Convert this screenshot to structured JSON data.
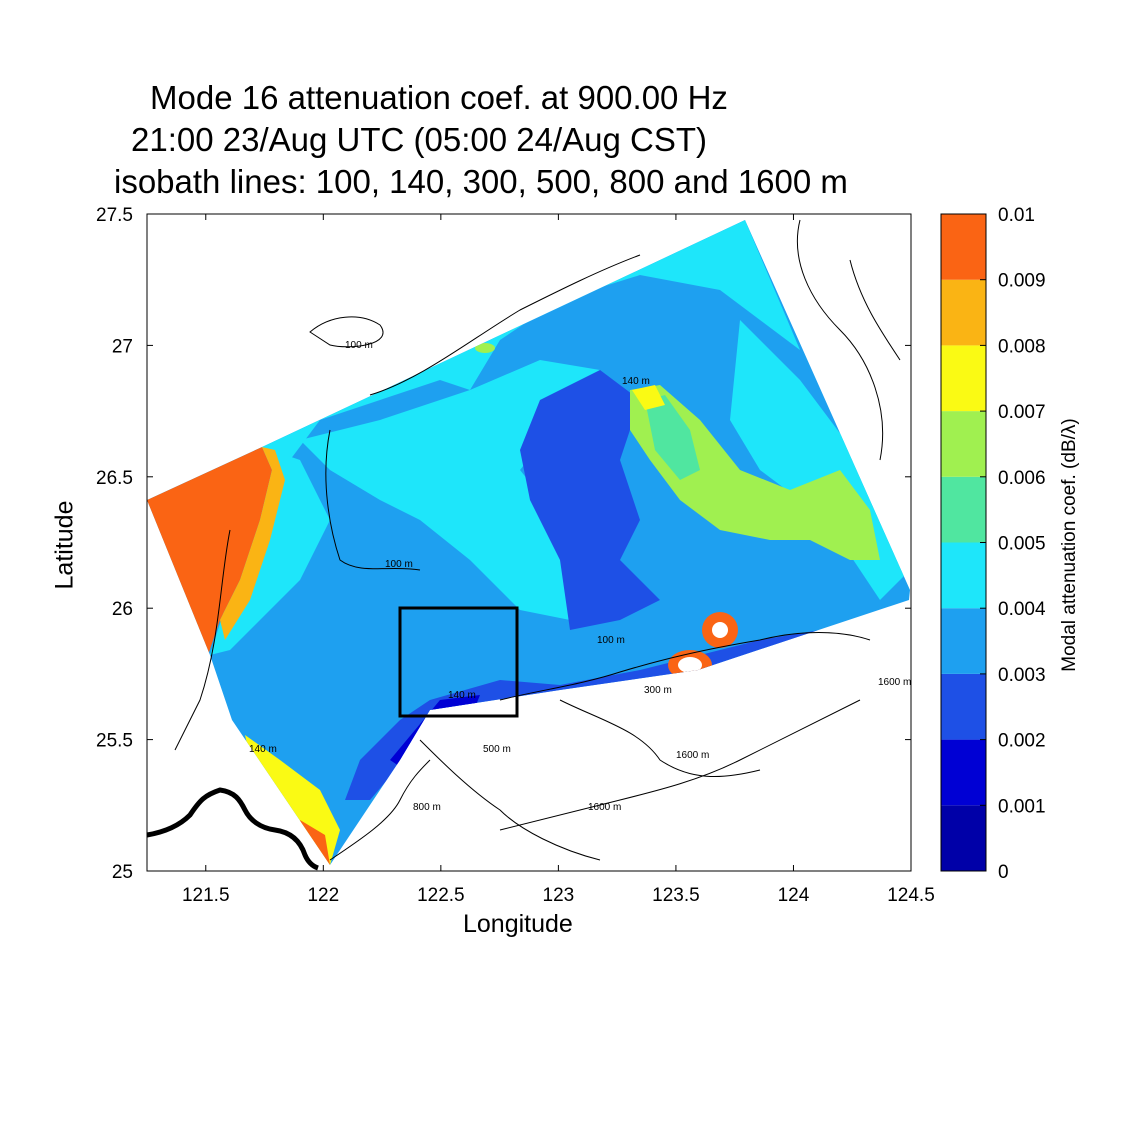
{
  "title": {
    "line1": "Mode 16 attenuation coef. at 900.00 Hz",
    "line2": "21:00 23/Aug UTC (05:00 24/Aug CST)",
    "line3": "isobath lines: 100, 140, 300, 500, 800 and 1600 m"
  },
  "axes": {
    "xlabel": "Longitude",
    "ylabel": "Latitude",
    "xlim": [
      121.25,
      124.5
    ],
    "ylim": [
      25,
      27.5
    ],
    "xticks": [
      "121.5",
      "122",
      "122.5",
      "123",
      "123.5",
      "124",
      "124.5"
    ],
    "yticks": [
      "25",
      "25.5",
      "26",
      "26.5",
      "27",
      "27.5"
    ]
  },
  "colorbar": {
    "label": "Modal attenuation coef. (dB/λ)",
    "tick_labels": [
      "0",
      "0.001",
      "0.002",
      "0.003",
      "0.004",
      "0.005",
      "0.006",
      "0.007",
      "0.008",
      "0.009",
      "0.01"
    ],
    "colors": [
      "#0000a8",
      "#0000d4",
      "#1e50e6",
      "#1ea0f0",
      "#1ee6fa",
      "#50e6a0",
      "#a0f050",
      "#fafa14",
      "#fab414",
      "#fa6414"
    ]
  },
  "isobath_labels": [
    "100 m",
    "140 m",
    "300 m",
    "500 m",
    "800 m",
    "1600 m"
  ],
  "study_box": {
    "lon": [
      122.33,
      122.83
    ],
    "lat": [
      25.59,
      26.0
    ]
  },
  "chart_data": {
    "type": "heatmap",
    "title": "Mode 16 attenuation coef. at 900.00 Hz",
    "xlabel": "Longitude",
    "ylabel": "Latitude",
    "xlim": [
      121.25,
      124.5
    ],
    "ylim": [
      25,
      27.5
    ],
    "colorbar_range": [
      0,
      0.01
    ],
    "colorbar_label": "Modal attenuation coef. (dB/λ)",
    "isobaths_m": [
      100,
      140,
      300,
      500,
      800,
      1600
    ]
  }
}
